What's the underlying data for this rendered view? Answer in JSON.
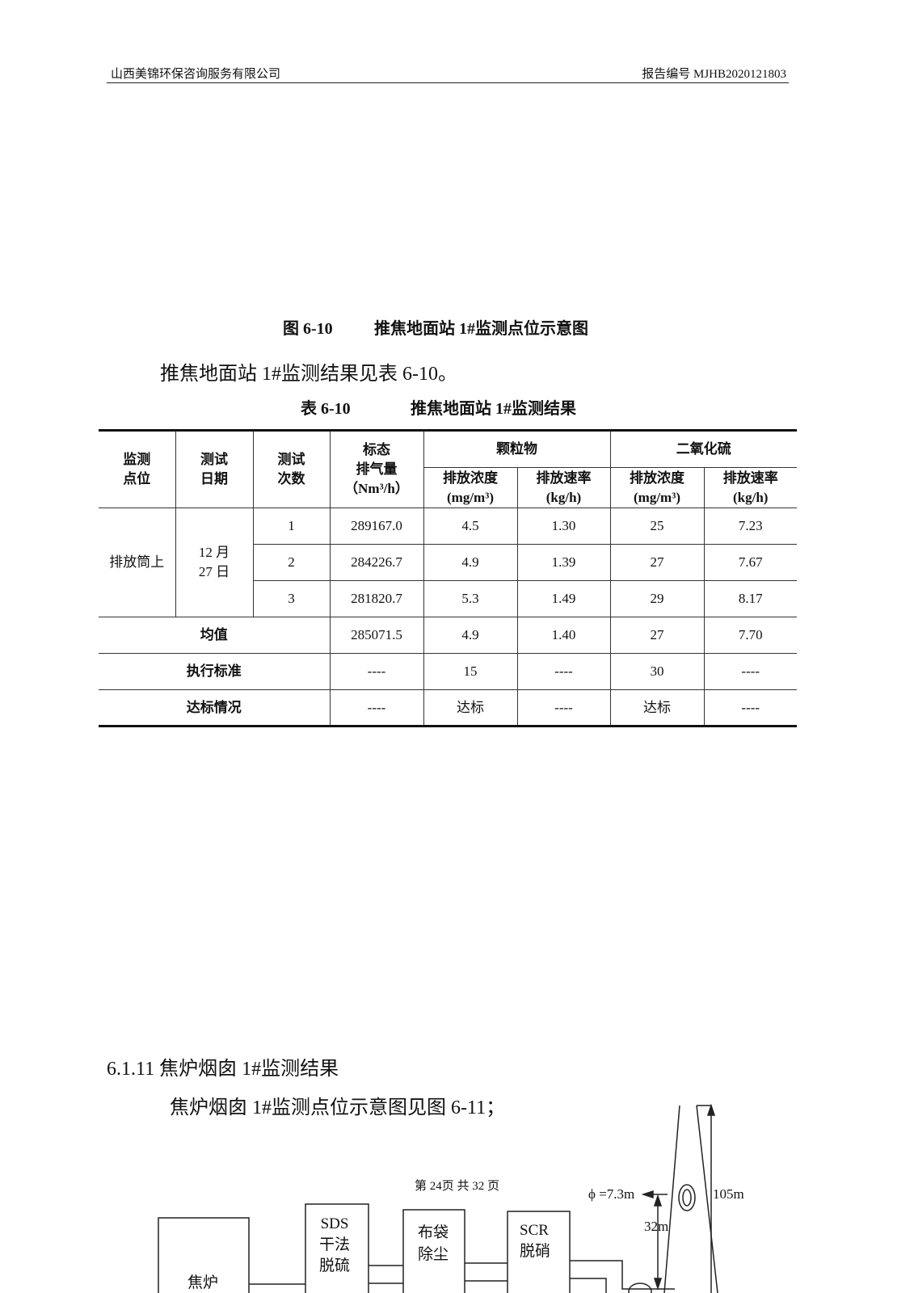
{
  "header": {
    "company": "山西美锦环保咨询服务有限公司",
    "report_no": "报告编号 MJHB2020121803"
  },
  "figure_caption": {
    "num": "图 6-10",
    "title": "推焦地面站 1#监测点位示意图"
  },
  "para1": "推焦地面站 1#监测结果见表 6-10。",
  "table_caption": {
    "num": "表 6-10",
    "title": "推焦地面站 1#监测结果"
  },
  "table": {
    "headers": {
      "point": "监测\n点位",
      "date": "测试\n日期",
      "times": "测试\n次数",
      "flow": "标态\n排气量",
      "flow_unit": "（Nm³/h）",
      "pm": "颗粒物",
      "so2": "二氧化硫",
      "conc": "排放浓度",
      "conc_unit": "(mg/m³)",
      "rate": "排放速率",
      "rate_unit": "(kg/h)"
    },
    "location": "排放筒上",
    "date": "12 月\n27 日",
    "rows": [
      {
        "n": "1",
        "flow": "289167.0",
        "pm_c": "4.5",
        "pm_r": "1.30",
        "so2_c": "25",
        "so2_r": "7.23"
      },
      {
        "n": "2",
        "flow": "284226.7",
        "pm_c": "4.9",
        "pm_r": "1.39",
        "so2_c": "27",
        "so2_r": "7.67"
      },
      {
        "n": "3",
        "flow": "281820.7",
        "pm_c": "5.3",
        "pm_r": "1.49",
        "so2_c": "29",
        "so2_r": "8.17"
      }
    ],
    "summary": [
      {
        "label": "均值",
        "flow": "285071.5",
        "pm_c": "4.9",
        "pm_r": "1.40",
        "so2_c": "27",
        "so2_r": "7.70"
      },
      {
        "label": "执行标准",
        "flow": "----",
        "pm_c": "15",
        "pm_r": "----",
        "so2_c": "30",
        "so2_r": "----"
      },
      {
        "label": "达标情况",
        "flow": "----",
        "pm_c": "达标",
        "pm_r": "----",
        "so2_c": "达标",
        "so2_r": "----"
      }
    ]
  },
  "section": {
    "title": "6.1.11  焦炉烟囱 1#监测结果",
    "para": "焦炉烟囱 1#监测点位示意图见图 6-11；"
  },
  "page_footer": "第 24页  共 32 页",
  "diagram": {
    "oven": "焦炉",
    "sds": [
      "SDS",
      "干法",
      "脱硫"
    ],
    "bag": [
      "布袋",
      "除尘"
    ],
    "scr": [
      "SCR",
      "脱硝"
    ],
    "diameter": "ϕ =7.3m",
    "h32": "32m",
    "h105": "105m"
  }
}
